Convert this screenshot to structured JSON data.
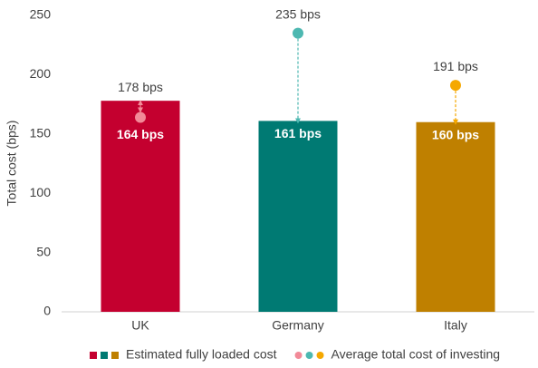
{
  "chart_data": {
    "type": "bar",
    "y_label": "Total cost (bps)",
    "categories": [
      "UK",
      "Germany",
      "Italy"
    ],
    "series": [
      {
        "name": "Estimated fully loaded cost",
        "type": "bar",
        "colors": [
          "#c4002f",
          "#007a73",
          "#bf8000"
        ],
        "values": [
          178,
          161,
          160
        ],
        "value_labels": [
          "178 bps",
          "161 bps",
          "160 bps"
        ]
      },
      {
        "name": "Average total cost of investing",
        "type": "dot",
        "colors": [
          "#f28a98",
          "#4db8b1",
          "#f5a800"
        ],
        "values": [
          164,
          235,
          191
        ],
        "value_labels": [
          "164 bps",
          "235 bps",
          "191 bps"
        ]
      }
    ],
    "ylim": [
      0,
      250
    ],
    "yticks": [
      0,
      50,
      100,
      150,
      200,
      250
    ],
    "grid": false
  }
}
